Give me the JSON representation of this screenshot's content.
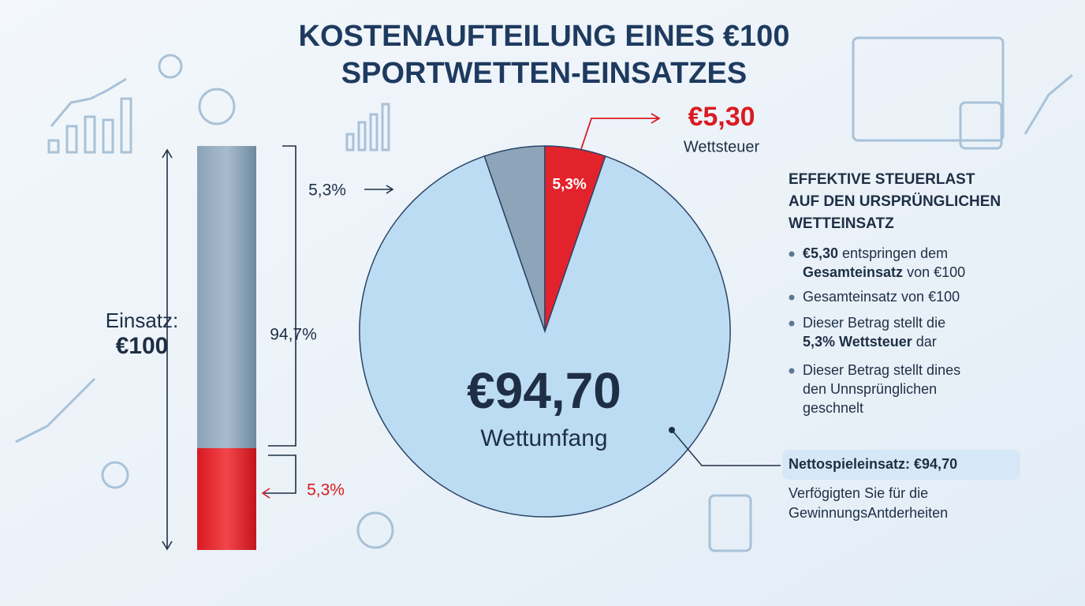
{
  "title": [
    "KOSTENAUFTEILUNG EINES €100",
    "SPORTWETTEN-EINSATZES"
  ],
  "stake": {
    "label": "Einsatz:",
    "amount": "€100"
  },
  "bar": {
    "top_callout": "5,3%",
    "upper_label": "94,7%",
    "lower_label": "5,3%"
  },
  "pie": {
    "slices": [
      {
        "value": 5.3,
        "color": "#8ea4b8"
      },
      {
        "value": 5.3,
        "color": "#e3232c",
        "label": "5,3%"
      },
      {
        "value": 89.4,
        "color": "#bcdcf3"
      }
    ],
    "center_amount": "€94,70",
    "center_label": "Wettumfang"
  },
  "callout": {
    "amount": "€5,30",
    "label": "Wettsteuer"
  },
  "panel": {
    "heading": [
      "EFFEKTIVE STEUERLAST",
      "AUF DEN URSPRÜNGLICHEN",
      "WETTEINSATZ"
    ],
    "bullets": [
      [
        [
          {
            "text": "€5,30",
            "bold": true
          },
          {
            "text": " entspringen dem"
          }
        ],
        [
          {
            "text": "Gesamteinsatz",
            "bold": true
          },
          {
            "text": " von €100"
          }
        ]
      ],
      [
        [
          {
            "text": "Gesamteinsatz von €100"
          }
        ]
      ],
      [
        [
          {
            "text": "Dieser Betrag stellt die"
          }
        ],
        [
          {
            "text": "5,3% Wettsteuer",
            "bold": true
          },
          {
            "text": " dar"
          }
        ]
      ],
      [
        [
          {
            "text": "Dieser Betrag stellt dines"
          }
        ],
        [
          {
            "text": "den Unnsprünglichen"
          }
        ],
        [
          {
            "text": "geschnelt"
          }
        ]
      ]
    ],
    "net_box": "Nettospieleinsatz: €94,70",
    "note": [
      "Verfögigten Sie für die",
      "GewinnungsAntderheiten"
    ]
  }
}
